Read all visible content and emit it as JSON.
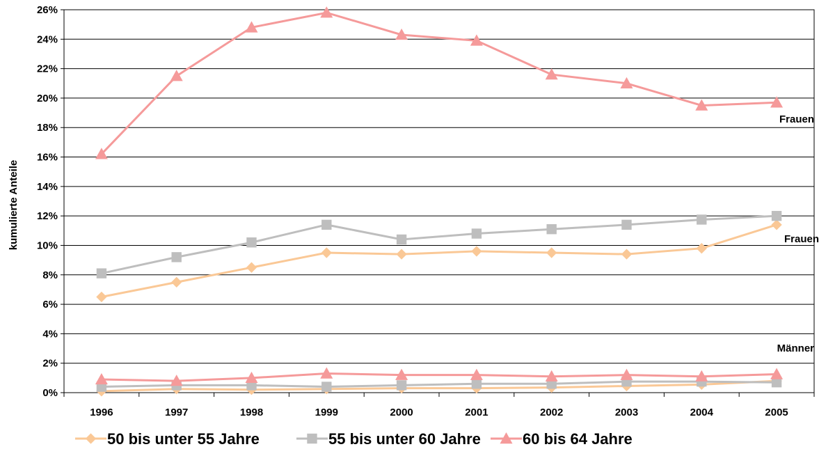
{
  "chart_data": {
    "type": "line",
    "ylabel": "kumulierte Anteile",
    "xlabel": "",
    "x": [
      "1996",
      "1997",
      "1998",
      "1999",
      "2000",
      "2001",
      "2002",
      "2003",
      "2004",
      "2005"
    ],
    "ylim": [
      0,
      26
    ],
    "y_ticks": [
      0,
      2,
      4,
      6,
      8,
      10,
      12,
      14,
      16,
      18,
      20,
      22,
      24,
      26
    ],
    "y_tick_labels": [
      "0%",
      "2%",
      "4%",
      "6%",
      "8%",
      "10%",
      "12%",
      "14%",
      "16%",
      "18%",
      "20%",
      "22%",
      "24%",
      "26%"
    ],
    "grid": "horizontal",
    "legend_position": "bottom",
    "series": [
      {
        "name": "50 bis unter 55 Jahre",
        "group": "Frauen",
        "marker": "diamond",
        "color": "#FAC896",
        "values": [
          6.5,
          7.5,
          8.5,
          9.5,
          9.4,
          9.6,
          9.5,
          9.4,
          9.8,
          11.4
        ]
      },
      {
        "name": "55 bis unter 60 Jahre",
        "group": "Frauen",
        "marker": "square",
        "color": "#BEBEBE",
        "values": [
          8.1,
          9.2,
          10.2,
          11.4,
          10.4,
          10.8,
          11.1,
          11.4,
          11.75,
          12.0
        ]
      },
      {
        "name": "60 bis 64 Jahre",
        "group": "Frauen",
        "marker": "triangle",
        "color": "#F59A9A",
        "values": [
          16.2,
          21.5,
          24.8,
          25.8,
          24.3,
          23.9,
          21.6,
          21.0,
          19.5,
          19.7
        ]
      },
      {
        "name": "50 bis unter 55 Jahre",
        "group": "Männer",
        "marker": "diamond",
        "color": "#FAC896",
        "values": [
          0.1,
          0.25,
          0.2,
          0.25,
          0.3,
          0.3,
          0.35,
          0.45,
          0.55,
          0.8
        ]
      },
      {
        "name": "55 bis unter 60 Jahre",
        "group": "Männer",
        "marker": "square",
        "color": "#BEBEBE",
        "values": [
          0.4,
          0.5,
          0.5,
          0.4,
          0.5,
          0.6,
          0.6,
          0.75,
          0.75,
          0.7
        ]
      },
      {
        "name": "60 bis 64 Jahre",
        "group": "Männer",
        "marker": "triangle",
        "color": "#F59A9A",
        "values": [
          0.9,
          0.8,
          1.0,
          1.3,
          1.2,
          1.2,
          1.1,
          1.2,
          1.1,
          1.25
        ]
      }
    ],
    "annotations": [
      "Frauen",
      "Frauen",
      "Männer"
    ],
    "legend": [
      {
        "label": "50 bis unter 55 Jahre",
        "marker": "diamond",
        "color": "#FAC896"
      },
      {
        "label": "55 bis unter 60 Jahre",
        "marker": "square",
        "color": "#BEBEBE"
      },
      {
        "label": "60 bis 64 Jahre",
        "marker": "triangle",
        "color": "#F59A9A"
      }
    ]
  }
}
